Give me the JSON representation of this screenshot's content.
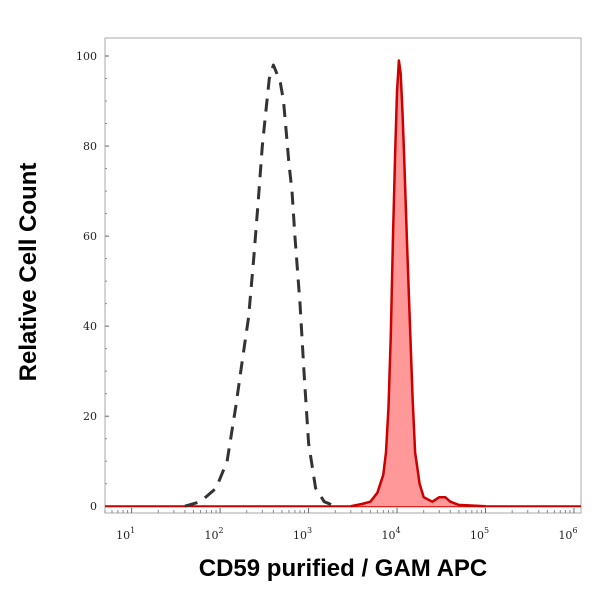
{
  "chart_data": {
    "type": "area",
    "title": "",
    "xlabel": "CD59 purified / GAM APC",
    "ylabel": "Relative Cell Count",
    "x_scale": "log",
    "xlim": [
      5,
      1200000
    ],
    "ylim": [
      -1.5,
      104
    ],
    "grid": false,
    "legend": "none",
    "x_ticks": [
      {
        "value": 10,
        "base": "10",
        "exp": "1"
      },
      {
        "value": 100,
        "base": "10",
        "exp": "2"
      },
      {
        "value": 1000,
        "base": "10",
        "exp": "3"
      },
      {
        "value": 10000,
        "base": "10",
        "exp": "4"
      },
      {
        "value": 100000,
        "base": "10",
        "exp": "5"
      },
      {
        "value": 1000000,
        "base": "10",
        "exp": "6"
      }
    ],
    "y_ticks": [
      "0",
      "20",
      "40",
      "60",
      "80",
      "100"
    ],
    "series": [
      {
        "style": "dashed",
        "color": "#333333",
        "x": [
          40,
          60,
          90,
          120,
          150,
          180,
          210,
          240,
          270,
          300,
          330,
          360,
          400,
          440,
          480,
          520,
          560,
          600,
          650,
          700,
          800,
          900,
          1000,
          1200,
          1500,
          2000
        ],
        "y": [
          0,
          1,
          4,
          10,
          22,
          33,
          42,
          55,
          68,
          80,
          88,
          95,
          98,
          96,
          94,
          90,
          83,
          76,
          70,
          60,
          45,
          28,
          14,
          4,
          1,
          0
        ]
      },
      {
        "style": "filled",
        "color": "#cc0000",
        "fill": "#ff9999",
        "x": [
          3000,
          4000,
          5000,
          6000,
          7000,
          7500,
          8000,
          8500,
          9000,
          9500,
          10000,
          10500,
          11000,
          11500,
          12000,
          13000,
          14000,
          15000,
          16000,
          18000,
          20000,
          25000,
          30000,
          35000,
          40000,
          50000,
          100000
        ],
        "y": [
          0,
          0.5,
          1,
          3,
          7,
          12,
          22,
          38,
          60,
          78,
          92,
          99,
          96,
          88,
          78,
          58,
          40,
          24,
          12,
          5,
          2,
          1,
          2,
          2,
          1,
          0.3,
          0
        ]
      }
    ]
  }
}
